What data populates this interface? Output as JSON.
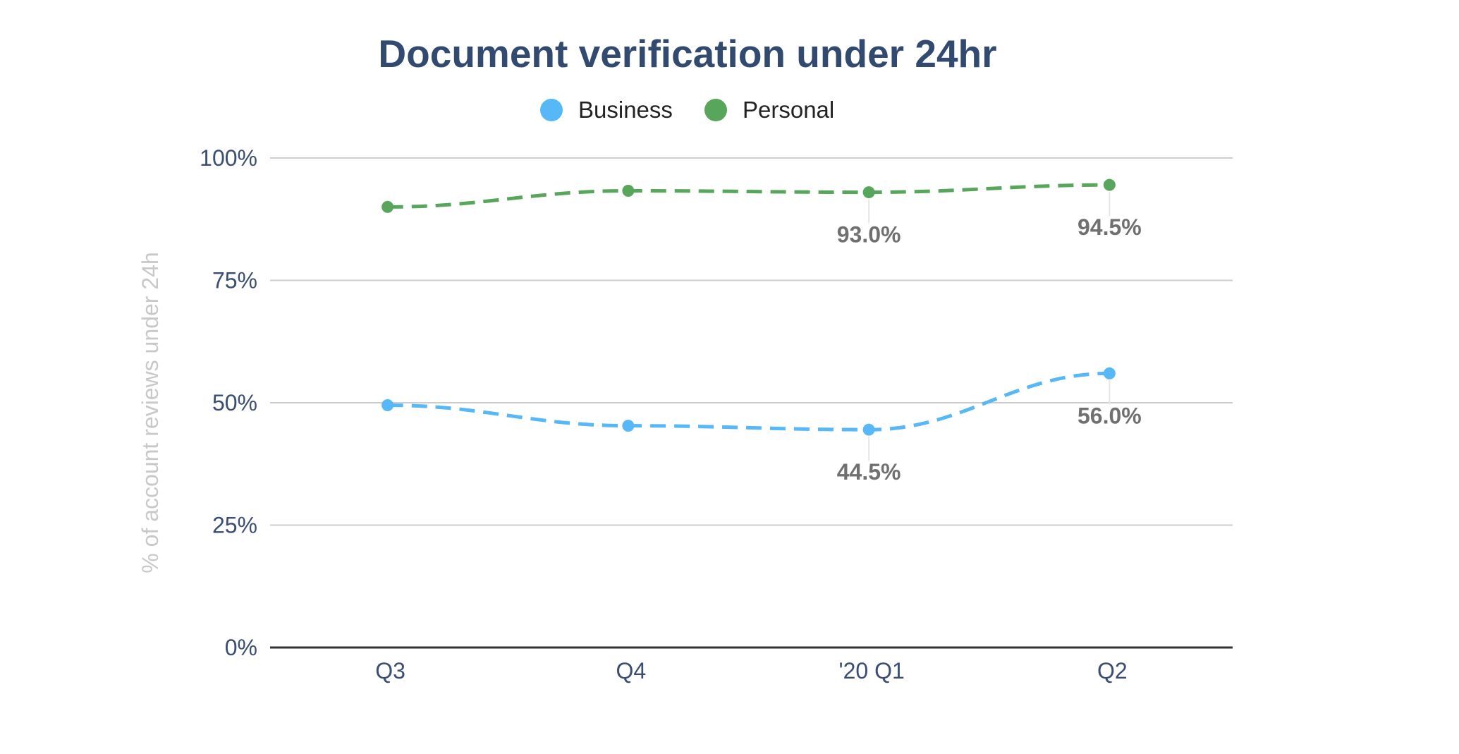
{
  "chart_data": {
    "type": "line",
    "title": "Document verification under 24hr",
    "xlabel": "",
    "ylabel": "% of account reviews under 24h",
    "categories": [
      "Q3",
      "Q4",
      "'20 Q1",
      "Q2"
    ],
    "yticks": [
      "0%",
      "25%",
      "50%",
      "75%",
      "100%"
    ],
    "ylim": [
      0,
      100
    ],
    "grid": true,
    "legend_position": "top-center",
    "line_style": "dashed",
    "series": [
      {
        "name": "Business",
        "color": "#56b8f6",
        "values": [
          49.5,
          45.3,
          44.5,
          56.0
        ],
        "data_labels": [
          "",
          "",
          "44.5%",
          "56.0%"
        ]
      },
      {
        "name": "Personal",
        "color": "#58a55c",
        "values": [
          90.0,
          93.3,
          93.0,
          94.5
        ],
        "data_labels": [
          "",
          "",
          "93.0%",
          "94.5%"
        ]
      }
    ]
  }
}
